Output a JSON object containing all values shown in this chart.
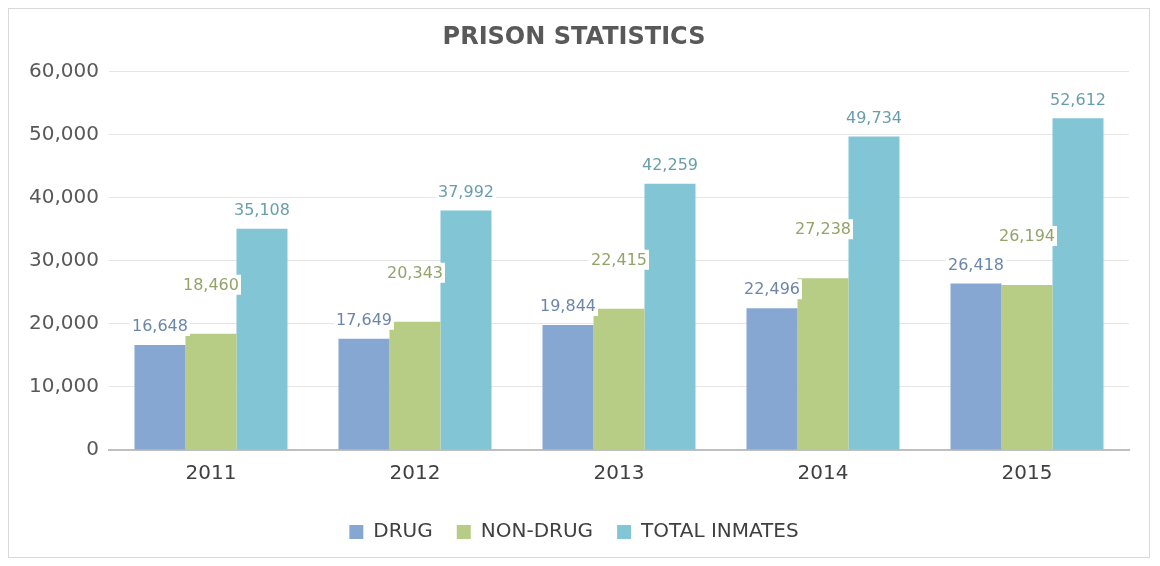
{
  "chart_data": {
    "type": "bar",
    "title": "PRISON STATISTICS",
    "categories": [
      "2011",
      "2012",
      "2013",
      "2014",
      "2015"
    ],
    "series": [
      {
        "name": "DRUG",
        "color": "#87a7d3",
        "values": [
          16648,
          17649,
          19844,
          22496,
          26418
        ],
        "value_labels": [
          "16,648",
          "17,649",
          "19,844",
          "22,496",
          "26,418"
        ]
      },
      {
        "name": "NON-DRUG",
        "color": "#b7cd85",
        "values": [
          18460,
          20343,
          22415,
          27238,
          26194
        ],
        "value_labels": [
          "18,460",
          "20,343",
          "22,415",
          "27,238",
          "26,194"
        ]
      },
      {
        "name": "TOTAL INMATES",
        "color": "#82c6d6",
        "values": [
          35108,
          37992,
          42259,
          49734,
          52612
        ],
        "value_labels": [
          "35,108",
          "37,992",
          "42,259",
          "49,734",
          "52,612"
        ]
      }
    ],
    "ylim": [
      0,
      60000
    ],
    "yticks": [
      {
        "value": 0,
        "label": "0"
      },
      {
        "value": 10000,
        "label": "10,000"
      },
      {
        "value": 20000,
        "label": "20,000"
      },
      {
        "value": 30000,
        "label": "30,000"
      },
      {
        "value": 40000,
        "label": "40,000"
      },
      {
        "value": 50000,
        "label": "50,000"
      },
      {
        "value": 60000,
        "label": "60,000"
      }
    ],
    "grid": "y",
    "legend": "bottom"
  }
}
